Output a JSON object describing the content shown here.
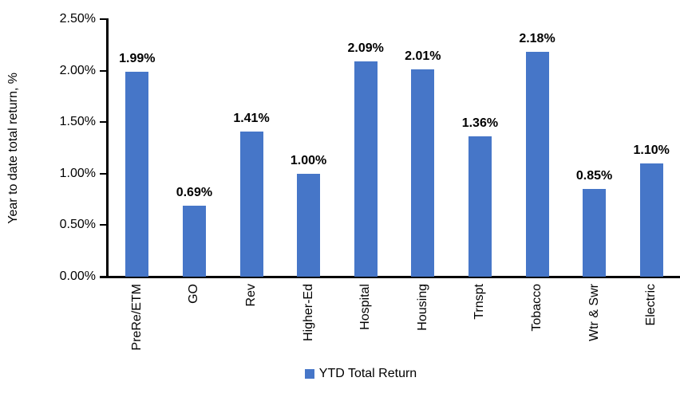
{
  "chart_data": {
    "type": "bar",
    "title": "",
    "xlabel": "",
    "ylabel": "Year to date total return, %",
    "categories": [
      "PreRe/ETM",
      "GO",
      "Rev",
      "Higher-Ed",
      "Hospital",
      "Housing",
      "Trnspt",
      "Tobacco",
      "Wtr & Swr",
      "Electric"
    ],
    "values": [
      1.99,
      0.69,
      1.41,
      1.0,
      2.09,
      2.01,
      1.36,
      2.18,
      0.85,
      1.1
    ],
    "data_labels": [
      "1.99%",
      "0.69%",
      "1.41%",
      "1.00%",
      "2.09%",
      "2.01%",
      "1.36%",
      "2.18%",
      "0.85%",
      "1.10%"
    ],
    "y_tick_labels": [
      "0.00%",
      "0.50%",
      "1.00%",
      "1.50%",
      "2.00%",
      "2.50%"
    ],
    "y_tick_values": [
      0,
      0.5,
      1.0,
      1.5,
      2.0,
      2.5
    ],
    "ylim": [
      0,
      2.5
    ],
    "grid": false,
    "bar_color": "#4676C8",
    "axis_color": "#000000",
    "text_color": "#000000",
    "legend": {
      "position": "bottom",
      "entries": [
        {
          "label": "YTD Total Return",
          "color": "#4676C8"
        }
      ]
    }
  }
}
